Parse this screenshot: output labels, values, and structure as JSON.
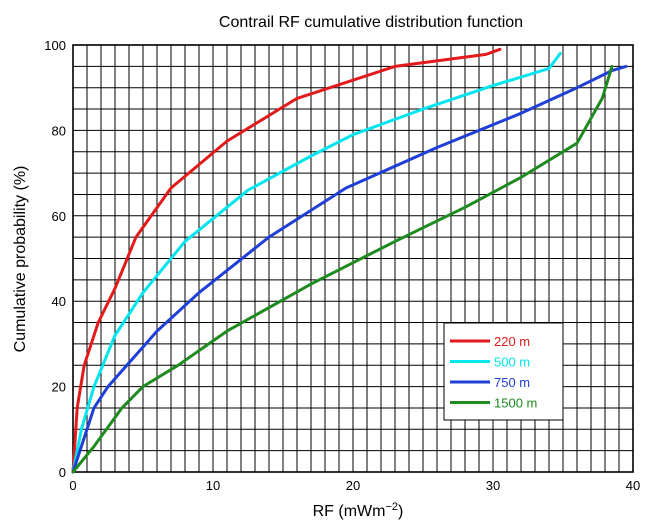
{
  "chart_data": {
    "type": "line",
    "title": "Contrail RF cumulative distribution function",
    "xlabel": "RF (mWm",
    "xlabel_superscript": "−2",
    "xlabel_suffix": ")",
    "ylabel": "Cumulative probability (%)",
    "xlim": [
      0,
      40
    ],
    "ylim": [
      0,
      100
    ],
    "x_ticks": [
      0,
      10,
      20,
      30,
      40
    ],
    "y_ticks": [
      0,
      20,
      40,
      60,
      80,
      100
    ],
    "x_tick_labels": [
      "0",
      "10",
      "20",
      "30",
      "40"
    ],
    "y_tick_labels": [
      "0",
      "20",
      "40",
      "60",
      "80",
      "100"
    ],
    "x_grid_step": 1,
    "y_grid_step": 5,
    "grid": true,
    "legend_position": "lower-right",
    "series": [
      {
        "name": "220 m",
        "color": "#e31a1c",
        "points": [
          [
            0,
            0
          ],
          [
            0.3,
            15
          ],
          [
            0.8,
            25
          ],
          [
            1.8,
            35
          ],
          [
            3,
            43
          ],
          [
            4.5,
            55
          ],
          [
            7,
            66.5
          ],
          [
            11,
            77.5
          ],
          [
            16,
            87.5
          ],
          [
            23,
            95
          ],
          [
            29.5,
            97.8
          ],
          [
            30.5,
            99
          ]
        ]
      },
      {
        "name": "500 m",
        "color": "#00e5ee",
        "points": [
          [
            0,
            0
          ],
          [
            0.6,
            10
          ],
          [
            1.5,
            20
          ],
          [
            3,
            32
          ],
          [
            5,
            42
          ],
          [
            8,
            54
          ],
          [
            12.5,
            66
          ],
          [
            17,
            74
          ],
          [
            20,
            79
          ],
          [
            25,
            85
          ],
          [
            30,
            90.5
          ],
          [
            34,
            94.5
          ],
          [
            34.8,
            98
          ]
        ]
      },
      {
        "name": "750 m",
        "color": "#1f3fd6",
        "points": [
          [
            0,
            0
          ],
          [
            1.5,
            15
          ],
          [
            2.5,
            20
          ],
          [
            6,
            33
          ],
          [
            9,
            42
          ],
          [
            14,
            55
          ],
          [
            19.5,
            66.5
          ],
          [
            26,
            76
          ],
          [
            32,
            84
          ],
          [
            36,
            90
          ],
          [
            38.5,
            94
          ],
          [
            39.5,
            95
          ]
        ]
      },
      {
        "name": "1500 m",
        "color": "#1f8a1f",
        "points": [
          [
            0,
            0
          ],
          [
            1.5,
            6
          ],
          [
            3.5,
            15
          ],
          [
            5,
            20
          ],
          [
            7.5,
            25
          ],
          [
            11,
            33
          ],
          [
            17,
            44
          ],
          [
            23,
            54
          ],
          [
            28,
            62
          ],
          [
            32,
            69
          ],
          [
            36,
            77
          ],
          [
            37.8,
            87.5
          ],
          [
            38.5,
            95
          ]
        ]
      }
    ]
  }
}
